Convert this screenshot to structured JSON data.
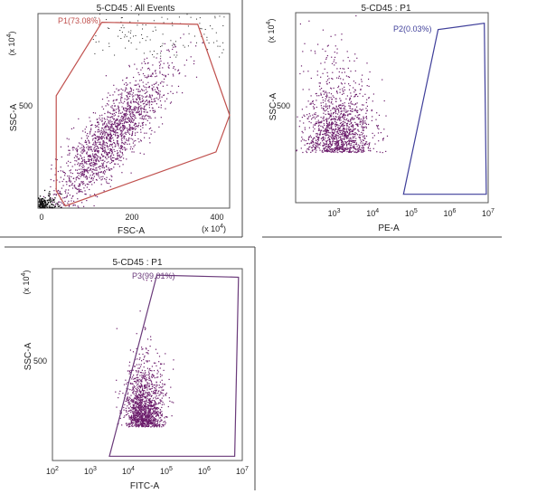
{
  "chart_data": [
    {
      "type": "scatter",
      "title": "5-CD45 : All Events",
      "xlabel": "FSC-A",
      "ylabel": "SSC-A",
      "x_scale": "linear",
      "x_unit_label": "(x 10^4)",
      "y_unit_label": "(x 10^4)",
      "xlim": [
        0,
        420
      ],
      "ylim": [
        0,
        900
      ],
      "xticks": [
        "0",
        "200",
        "400"
      ],
      "yticks": [
        "500"
      ],
      "gate": {
        "name": "P1(73.08%)",
        "percent": 73.08,
        "color": "#c0504d",
        "vertices": [
          [
            40,
            80
          ],
          [
            40,
            520
          ],
          [
            140,
            860
          ],
          [
            350,
            850
          ],
          [
            420,
            430
          ],
          [
            390,
            260
          ],
          [
            60,
            10
          ]
        ]
      },
      "population": {
        "center": [
          160,
          330
        ],
        "spread": [
          60,
          150
        ],
        "color": "#6a1b6a"
      }
    },
    {
      "type": "scatter",
      "title": "5-CD45 : P1",
      "xlabel": "PE-A",
      "ylabel": "SSC-A",
      "x_scale": "log",
      "y_unit_label": "(x 10^4)",
      "xlim": [
        2,
        7
      ],
      "ylim": [
        0,
        900
      ],
      "xticks": [
        "10^3",
        "10^4",
        "10^5",
        "10^6",
        "10^7"
      ],
      "yticks": [
        "500"
      ],
      "gate": {
        "name": "P2(0.03%)",
        "percent": 0.03,
        "color": "#3f3f9a",
        "vertices": [
          [
            4.8,
            40
          ],
          [
            6.95,
            40
          ],
          [
            6.9,
            850
          ],
          [
            5.7,
            820
          ]
        ]
      },
      "population": {
        "center": [
          3.1,
          300
        ],
        "spread": [
          0.45,
          180
        ],
        "color": "#6a1b6a"
      }
    },
    {
      "type": "scatter",
      "title": "5-CD45 : P1",
      "xlabel": "FITC-A",
      "ylabel": "SSC-A",
      "x_scale": "log",
      "y_unit_label": "(x 10^4)",
      "xlim": [
        2,
        7
      ],
      "ylim": [
        0,
        900
      ],
      "xticks": [
        "10^2",
        "10^3",
        "10^4",
        "10^5",
        "10^6",
        "10^7"
      ],
      "yticks": [
        "500"
      ],
      "gate": {
        "name": "P3(99.01%)",
        "percent": 99.01,
        "color": "#6a3a7a",
        "vertices": [
          [
            3.5,
            20
          ],
          [
            4.75,
            870
          ],
          [
            6.9,
            860
          ],
          [
            6.8,
            20
          ]
        ]
      },
      "population": {
        "center": [
          4.4,
          220
        ],
        "spread": [
          0.25,
          140
        ],
        "color": "#6a1b6a"
      }
    }
  ]
}
